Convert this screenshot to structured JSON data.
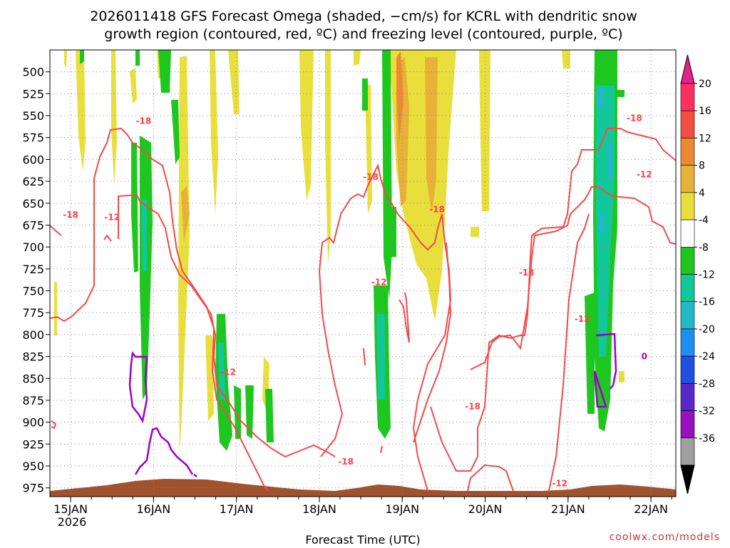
{
  "title": {
    "line1": "2026011418 GFS Forecast Omega (shaded, −cm/s) for KCRL with dendritic snow",
    "line2": "growth region (contoured, red, ºC) and freezing level (contoured, purple, ºC)"
  },
  "credit": "coolwx.com/models",
  "chart_data": {
    "type": "heatmap",
    "title": "2026011418 GFS Forecast Omega (shaded, −cm/s) for KCRL with dendritic snow growth region (contoured, red, ºC) and freezing level (contoured, purple, ºC)",
    "xlabel": "Forecast Time (UTC)",
    "ylabel": "",
    "x_ticks": [
      "15JAN",
      "16JAN",
      "17JAN",
      "18JAN",
      "19JAN",
      "20JAN",
      "21JAN",
      "22JAN"
    ],
    "x_tick_year": "2026",
    "y_ticks": [
      500,
      525,
      550,
      575,
      600,
      625,
      650,
      675,
      700,
      725,
      750,
      775,
      800,
      825,
      850,
      875,
      900,
      925,
      950,
      975
    ],
    "ylim": [
      475,
      985
    ],
    "y_inverted": true,
    "grid": true,
    "colorbar": {
      "levels": [
        20,
        16,
        12,
        8,
        4,
        -4,
        -8,
        -12,
        -16,
        -20,
        -24,
        -28,
        -32,
        -36
      ],
      "colors": [
        "#ff3060",
        "#f24f3e",
        "#eb8a32",
        "#e8b238",
        "#e9df3c",
        "#ffffff",
        "#1ec71e",
        "#12c79a",
        "#22b8c8",
        "#1e8ff0",
        "#2050e0",
        "#5a28c8",
        "#9a10c0",
        "#a0a0a0"
      ],
      "top_arrow_color": "#e8208a",
      "bottom_arrow_color": "#000000"
    },
    "contour_labels_red": [
      {
        "text": "-18",
        "x_day": 15.88,
        "p": 556
      },
      {
        "text": "-18",
        "x_day": 15.0,
        "p": 663
      },
      {
        "text": "-12",
        "x_day": 15.5,
        "p": 666
      },
      {
        "text": "-12",
        "x_day": 16.9,
        "p": 843
      },
      {
        "text": "-18",
        "x_day": 18.32,
        "p": 945
      },
      {
        "text": "-18",
        "x_day": 18.62,
        "p": 620
      },
      {
        "text": "-18",
        "x_day": 19.42,
        "p": 657
      },
      {
        "text": "-18",
        "x_day": 19.85,
        "p": 882
      },
      {
        "text": "-12",
        "x_day": 18.72,
        "p": 740
      },
      {
        "text": "-18",
        "x_day": 20.5,
        "p": 729
      },
      {
        "text": "-12",
        "x_day": 21.17,
        "p": 782
      },
      {
        "text": "-12",
        "x_day": 20.9,
        "p": 970
      },
      {
        "text": "-18",
        "x_day": 21.8,
        "p": 553
      },
      {
        "text": "-12",
        "x_day": 21.92,
        "p": 617
      }
    ],
    "contour_labels_purple": [
      {
        "text": "0",
        "x_day": 21.92,
        "p": 825
      }
    ]
  }
}
